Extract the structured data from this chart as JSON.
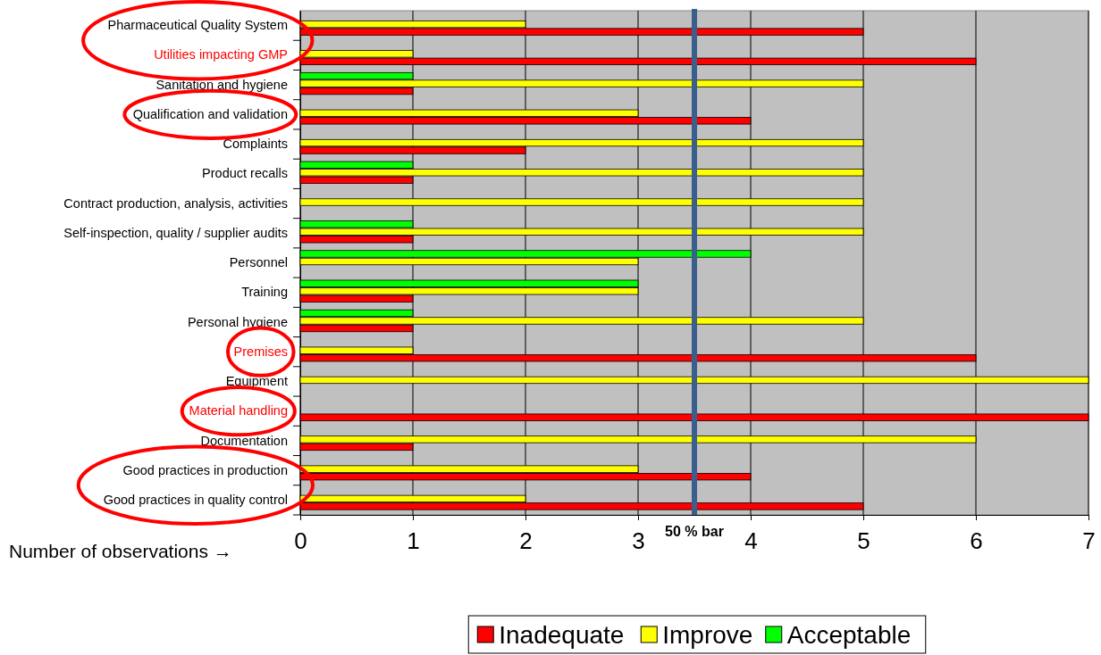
{
  "chart_data": {
    "type": "bar",
    "orientation": "horizontal",
    "xlabel": "Number of observations →",
    "categories": [
      "Pharmaceutical Quality System",
      "Utilities impacting GMP",
      "Sanitation and hygiene",
      "Qualification and validation",
      "Complaints",
      "Product recalls",
      "Contract production, analysis, activities",
      "Self-inspection, quality / supplier audits",
      "Personnel",
      "Training",
      "Personal hygiene",
      "Premises",
      "Equipment",
      "Material handling",
      "Documentation",
      "Good practices in production",
      "Good practices in quality control"
    ],
    "series": [
      {
        "name": "Inadequate",
        "color": "#ff0000",
        "values": [
          5,
          6,
          1,
          4,
          2,
          1,
          null,
          1,
          null,
          1,
          1,
          6,
          null,
          7,
          1,
          4,
          5
        ]
      },
      {
        "name": "Improve",
        "color": "#ffff00",
        "values": [
          2,
          1,
          5,
          3,
          5,
          5,
          5,
          5,
          3,
          3,
          5,
          1,
          7,
          null,
          6,
          3,
          2
        ]
      },
      {
        "name": "Acceptable",
        "color": "#00ff00",
        "values": [
          null,
          null,
          1,
          null,
          null,
          1,
          null,
          1,
          4,
          3,
          1,
          null,
          null,
          null,
          null,
          null,
          null
        ]
      }
    ],
    "xlim": [
      0,
      7
    ],
    "xticks": [
      0,
      1,
      2,
      3,
      4,
      5,
      6,
      7
    ],
    "grid": "x",
    "legend": "bottom",
    "ref_lines": [
      {
        "axis": "x",
        "value": 3.5,
        "label": "50 % bar",
        "color": "#3b5f8c"
      }
    ]
  }
}
